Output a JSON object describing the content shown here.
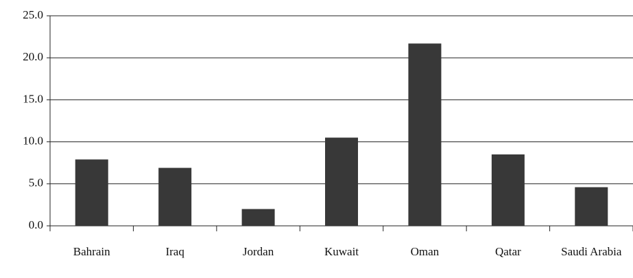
{
  "chart_data": {
    "type": "bar",
    "categories": [
      "Bahrain",
      "Iraq",
      "Jordan",
      "Kuwait",
      "Oman",
      "Qatar",
      "Saudi Arabia"
    ],
    "values": [
      7.9,
      6.9,
      2.0,
      10.5,
      21.7,
      8.5,
      4.6
    ],
    "color": "#383838",
    "ylim": [
      0,
      25
    ],
    "yticks": [
      {
        "value": 0,
        "label": "0.0"
      },
      {
        "value": 5,
        "label": "5.0"
      },
      {
        "value": 10,
        "label": "10.0"
      },
      {
        "value": 15,
        "label": "15.0"
      },
      {
        "value": 20,
        "label": "20.0"
      },
      {
        "value": 25,
        "label": "25.0"
      }
    ],
    "grid": true
  }
}
